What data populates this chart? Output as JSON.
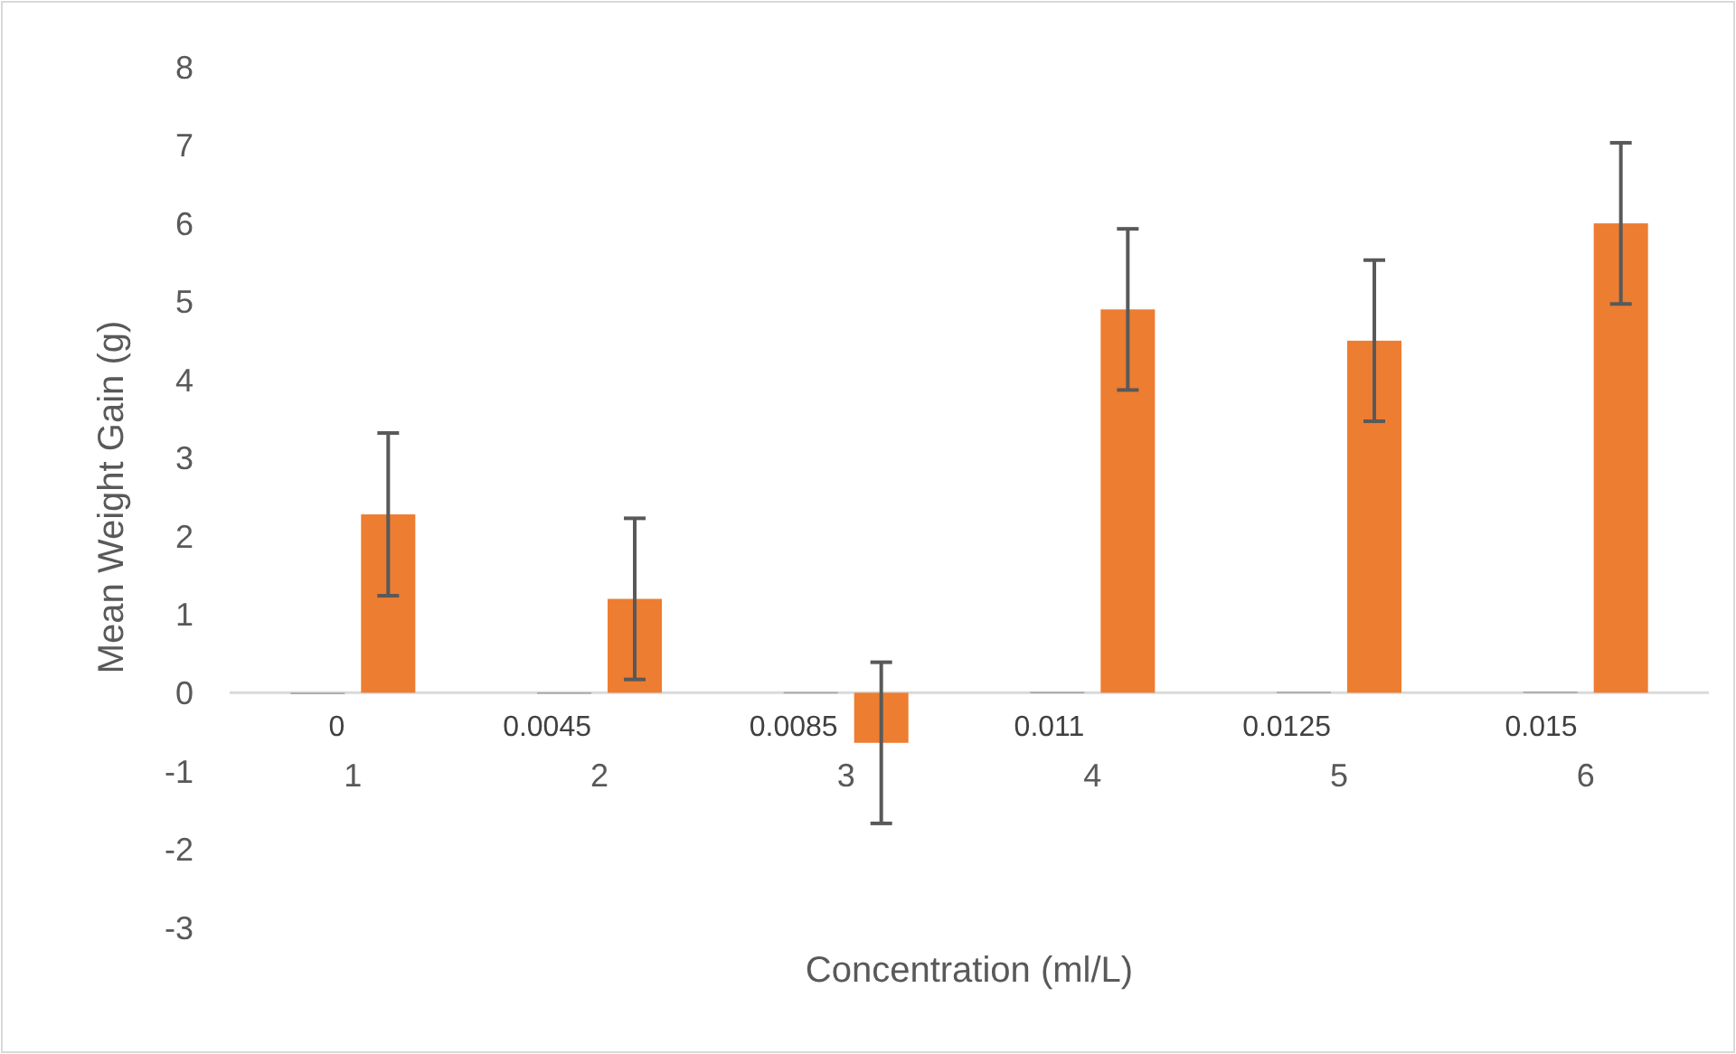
{
  "chart_data": {
    "type": "bar",
    "xlabel": "Concentration (ml/L)",
    "ylabel": "Mean Weight Gain (g)",
    "categories": [
      "1",
      "2",
      "3",
      "4",
      "5",
      "6"
    ],
    "series": [
      {
        "color": "#a5a5a5",
        "values": [
          0,
          0.0045,
          0.0085,
          0.011,
          0.0125,
          0.015
        ],
        "value_labels": [
          "0",
          "0.0045",
          "0.0085",
          "0.011",
          "0.0125",
          "0.015"
        ]
      },
      {
        "color": "#ed7d31",
        "values": [
          2.28,
          1.2,
          -0.64,
          4.9,
          4.5,
          6.0
        ],
        "errors": [
          1.04,
          1.03,
          1.03,
          1.03,
          1.03,
          1.03
        ]
      }
    ],
    "ylim": [
      -3,
      8
    ],
    "yticks": [
      -3,
      -2,
      -1,
      0,
      1,
      2,
      3,
      4,
      5,
      6,
      7,
      8
    ],
    "grid": false
  }
}
